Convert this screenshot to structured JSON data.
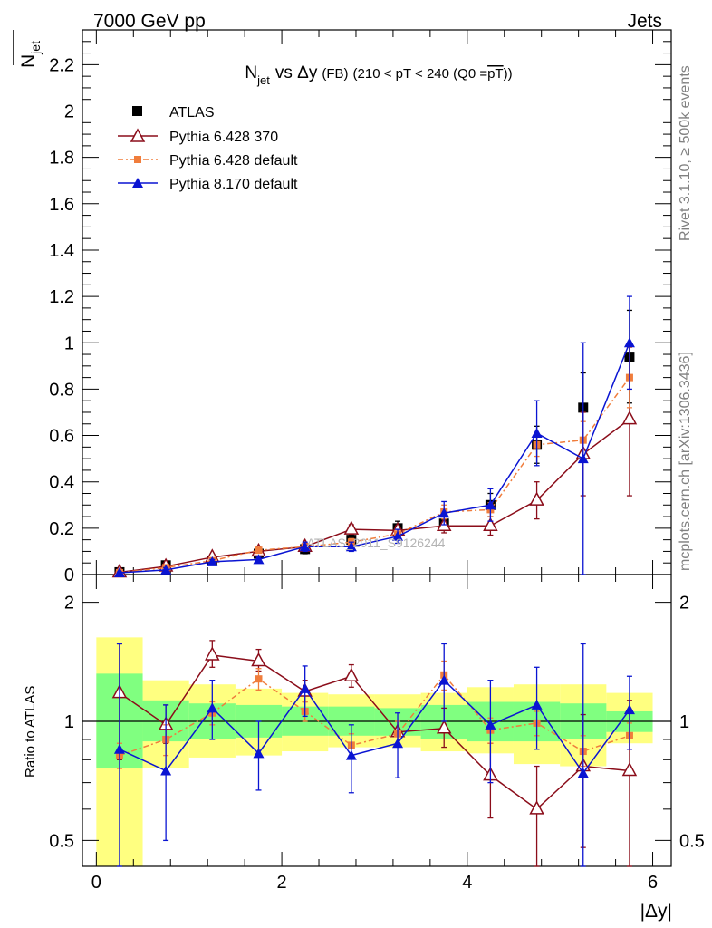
{
  "header": {
    "left": "7000 GeV pp",
    "right": "Jets"
  },
  "side_labels": {
    "rivet": "Rivet 3.1.10, ≥ 500k events",
    "mcplots": "mcplots.cern.ch [arXiv:1306.3436]"
  },
  "watermark": "ATLAS_2011_S9126244",
  "colors": {
    "atlas": "#000000",
    "p370": "#8b0d1a",
    "pdef": "#f07d3c",
    "p8": "#0a14d2",
    "band_outer": "#ffff80",
    "band_inner": "#80ff80"
  },
  "chart_data": [
    {
      "type": "scatter",
      "title": "N_jet vs Δy (FB) (210 < pT < 240 (Q0 = pT))",
      "title_parts": {
        "n": "N",
        "n_sub": "jet",
        "vs": "vs Δy",
        "fb": "(FB)",
        "cut": "(210 < pT < 240 (Q0 =",
        "pt": "pT",
        "close": "))"
      },
      "ylabel": {
        "n": "N",
        "sub": "jet"
      },
      "xlabel": "|Δy|",
      "xlim": [
        -0.15,
        6.2
      ],
      "ylim": [
        0,
        2.35
      ],
      "xticks": [
        0,
        2,
        4,
        6
      ],
      "yticks": [
        0.2,
        0.4,
        0.6,
        0.8,
        1,
        1.2,
        1.4,
        1.6,
        1.8,
        2,
        2.2
      ],
      "ytick_labels": [
        "0.2",
        "0.4",
        "0.6",
        "0.8",
        "1",
        "1.2",
        "1.4",
        "1.6",
        "1.8",
        "2",
        "2.2"
      ],
      "y0_label": "0",
      "x": [
        0.25,
        0.75,
        1.25,
        1.75,
        2.25,
        2.75,
        3.25,
        3.75,
        4.25,
        4.75,
        5.25,
        5.75
      ],
      "legend": [
        "ATLAS",
        "Pythia 6.428 370",
        "Pythia 6.428 default",
        "Pythia 8.170 default"
      ],
      "series": [
        {
          "name": "ATLAS",
          "values": [
            0.01,
            0.04,
            0.06,
            0.09,
            0.11,
            0.15,
            0.2,
            0.22,
            0.3,
            0.56,
            0.72,
            0.94
          ],
          "err": [
            0.004,
            0.01,
            0.01,
            0.015,
            0.02,
            0.02,
            0.03,
            0.03,
            0.05,
            0.08,
            0.15,
            0.2
          ]
        },
        {
          "name": "Pythia 6.428 370",
          "values": [
            0.01,
            0.035,
            0.075,
            0.1,
            0.12,
            0.195,
            0.19,
            0.21,
            0.21,
            0.32,
            0.52,
            0.67
          ],
          "err": [
            0.003,
            0.006,
            0.01,
            0.012,
            0.015,
            0.02,
            0.02,
            0.03,
            0.04,
            0.08,
            0.18,
            0.33
          ]
        },
        {
          "name": "Pythia 6.428 default",
          "values": [
            0.008,
            0.03,
            0.06,
            0.105,
            0.12,
            0.14,
            0.175,
            0.27,
            0.28,
            0.56,
            0.58,
            0.85
          ],
          "err": [
            0.002,
            0.005,
            0.008,
            0.01,
            0.012,
            0.015,
            0.02,
            0.03,
            0.03,
            0.05,
            0.08,
            0.13
          ]
        },
        {
          "name": "Pythia 8.170 default",
          "values": [
            0.008,
            0.02,
            0.055,
            0.065,
            0.12,
            0.12,
            0.165,
            0.265,
            0.3,
            0.61,
            0.5,
            1.0
          ],
          "err": [
            0.003,
            0.01,
            0.01,
            0.01,
            0.02,
            0.02,
            0.03,
            0.05,
            0.07,
            0.14,
            0.5,
            0.2
          ]
        }
      ]
    },
    {
      "type": "scatter",
      "ylabel": "Ratio to ATLAS",
      "scale": "log",
      "ylim": [
        0.43,
        2.35
      ],
      "yticks": [
        0.5,
        1,
        2
      ],
      "ytick_labels": [
        "0.5",
        "1",
        "2"
      ],
      "reference": 1,
      "x": [
        0.25,
        0.75,
        1.25,
        1.75,
        2.25,
        2.75,
        3.25,
        3.75,
        4.25,
        4.75,
        5.25,
        5.75
      ],
      "band_edges": [
        0,
        0.5,
        1,
        1.5,
        2,
        2.5,
        3,
        3.5,
        4,
        4.5,
        5,
        5.5,
        6
      ],
      "band_inner": [
        [
          0.76,
          1.32
        ],
        [
          0.89,
          1.13
        ],
        [
          0.9,
          1.11
        ],
        [
          0.91,
          1.1
        ],
        [
          0.92,
          1.09
        ],
        [
          0.92,
          1.09
        ],
        [
          0.92,
          1.08
        ],
        [
          0.9,
          1.1
        ],
        [
          0.89,
          1.12
        ],
        [
          0.89,
          1.12
        ],
        [
          0.9,
          1.11
        ],
        [
          0.94,
          1.06
        ]
      ],
      "band_outer": [
        [
          0.4,
          1.63
        ],
        [
          0.76,
          1.27
        ],
        [
          0.81,
          1.24
        ],
        [
          0.82,
          1.21
        ],
        [
          0.84,
          1.18
        ],
        [
          0.86,
          1.17
        ],
        [
          0.86,
          1.17
        ],
        [
          0.84,
          1.18
        ],
        [
          0.83,
          1.22
        ],
        [
          0.78,
          1.24
        ],
        [
          0.77,
          1.24
        ],
        [
          0.88,
          1.18
        ]
      ],
      "series": [
        {
          "name": "Pythia 6.428 370",
          "values": [
            1.18,
            0.98,
            1.47,
            1.42,
            1.19,
            1.3,
            0.94,
            0.96,
            0.73,
            0.6,
            0.77,
            0.75
          ],
          "lo": [
            0.8,
            0.88,
            1.37,
            1.34,
            1.12,
            1.22,
            0.88,
            0.86,
            0.57,
            0.4,
            0.48,
            0.35
          ],
          "hi": [
            1.57,
            1.1,
            1.6,
            1.52,
            1.27,
            1.39,
            1.0,
            1.08,
            0.88,
            0.77,
            1.04,
            1.13
          ]
        },
        {
          "name": "Pythia 6.428 default",
          "values": [
            0.82,
            0.9,
            1.05,
            1.28,
            1.06,
            0.87,
            0.93,
            1.31,
            0.95,
            0.99,
            0.84,
            0.92
          ],
          "lo": [
            0.76,
            0.82,
            0.98,
            1.2,
            1.0,
            0.82,
            0.87,
            1.2,
            0.88,
            0.92,
            0.77,
            0.85
          ],
          "hi": [
            0.88,
            0.98,
            1.12,
            1.36,
            1.12,
            0.93,
            1.0,
            1.42,
            1.02,
            1.06,
            0.92,
            0.99
          ]
        },
        {
          "name": "Pythia 8.170 default",
          "values": [
            0.85,
            0.75,
            1.08,
            0.83,
            1.21,
            0.82,
            0.88,
            1.27,
            0.98,
            1.1,
            0.74,
            1.07
          ],
          "lo": [
            0.35,
            0.5,
            0.9,
            0.67,
            1.03,
            0.66,
            0.72,
            1.0,
            0.7,
            0.85,
            0.35,
            0.85
          ],
          "hi": [
            1.57,
            1.1,
            1.27,
            1.0,
            1.38,
            0.98,
            1.05,
            1.57,
            1.27,
            1.37,
            1.57,
            1.3
          ]
        }
      ]
    }
  ]
}
